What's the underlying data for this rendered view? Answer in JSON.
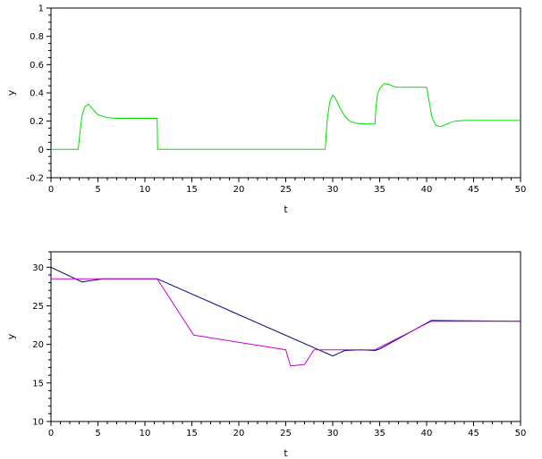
{
  "chart_data": [
    {
      "type": "line",
      "xlabel": "t",
      "ylabel": "y",
      "xlim": [
        0,
        50
      ],
      "ylim": [
        -0.2,
        1
      ],
      "xticks": [
        "0",
        "5",
        "10",
        "15",
        "20",
        "25",
        "30",
        "35",
        "40",
        "45",
        "50"
      ],
      "yticks": [
        "-0.2",
        "0",
        "0.2",
        "0.4",
        "0.6",
        "0.8",
        "1"
      ],
      "grid": false,
      "series": [
        {
          "color": "#00e000",
          "x": [
            0,
            2.9,
            3.05,
            3.3,
            3.6,
            4.0,
            4.5,
            5.0,
            6.0,
            7.0,
            8.0,
            9.0,
            10.0,
            11.0,
            11.3,
            11.35,
            11.5,
            12,
            20,
            29.2,
            29.4,
            29.7,
            30.0,
            30.3,
            30.8,
            31.3,
            31.8,
            32.5,
            33.5,
            34.5,
            34.6,
            34.8,
            35.1,
            35.5,
            36.0,
            36.5,
            37.0,
            38.0,
            40.0,
            40.3,
            40.6,
            41.0,
            41.5,
            42.0,
            42.5,
            43.0,
            44.0,
            45.0,
            50.0
          ],
          "y": [
            0,
            0,
            0.1,
            0.24,
            0.3,
            0.32,
            0.28,
            0.245,
            0.225,
            0.22,
            0.22,
            0.22,
            0.22,
            0.22,
            0.22,
            0,
            0,
            0,
            0,
            0,
            0.2,
            0.34,
            0.385,
            0.36,
            0.29,
            0.235,
            0.2,
            0.185,
            0.18,
            0.18,
            0.3,
            0.4,
            0.44,
            0.465,
            0.46,
            0.445,
            0.44,
            0.44,
            0.44,
            0.33,
            0.22,
            0.17,
            0.16,
            0.175,
            0.19,
            0.2,
            0.205,
            0.205,
            0.205
          ]
        }
      ]
    },
    {
      "type": "line",
      "xlabel": "t",
      "ylabel": "y",
      "xlim": [
        0,
        50
      ],
      "ylim": [
        10,
        32
      ],
      "xticks": [
        "0",
        "5",
        "10",
        "15",
        "20",
        "25",
        "30",
        "35",
        "40",
        "45",
        "50"
      ],
      "yticks": [
        "10",
        "15",
        "20",
        "25",
        "30"
      ],
      "grid": false,
      "series": [
        {
          "color": "#000080",
          "x": [
            0,
            3.3,
            5.5,
            11.3,
            28.5,
            30,
            31.3,
            33,
            34.5,
            35,
            40.5,
            50
          ],
          "y": [
            30,
            28.1,
            28.5,
            28.5,
            19.3,
            18.5,
            19.2,
            19.3,
            19.2,
            19.4,
            23.1,
            23
          ]
        },
        {
          "color": "#d000d0",
          "x": [
            0,
            11.3,
            15.2,
            25,
            25.5,
            27,
            28,
            29,
            33,
            34.5,
            40.5,
            50
          ],
          "y": [
            28.5,
            28.5,
            21.2,
            19.3,
            17.2,
            17.4,
            19.3,
            19.3,
            19.3,
            19.3,
            23,
            23
          ]
        }
      ]
    }
  ]
}
